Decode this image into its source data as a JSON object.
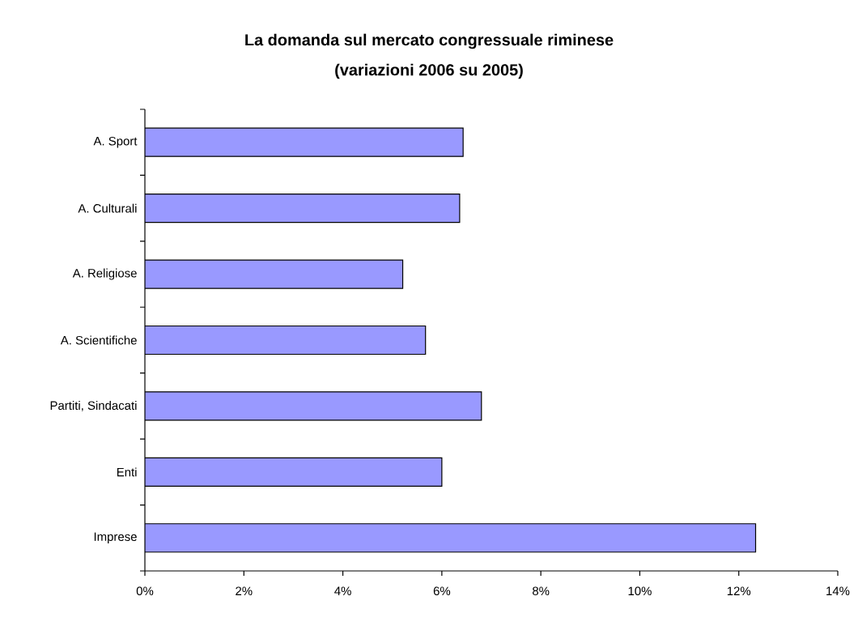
{
  "chart_data": {
    "type": "bar",
    "orientation": "horizontal",
    "title": "La domanda sul mercato congressuale riminese",
    "subtitle": "(variazioni 2006 su 2005)",
    "categories": [
      "A.  Sport",
      "A. Culturali",
      "A. Religiose",
      "A. Scientifiche",
      "Partiti, Sindacati",
      "Enti",
      "Imprese"
    ],
    "values": [
      6.43,
      6.36,
      5.21,
      5.67,
      6.8,
      6.0,
      12.34
    ],
    "color": "#9999ff",
    "xlim": [
      0,
      14
    ],
    "xticks": [
      {
        "value": 0,
        "label": "0%"
      },
      {
        "value": 2,
        "label": "2%"
      },
      {
        "value": 4,
        "label": "4%"
      },
      {
        "value": 6,
        "label": "6%"
      },
      {
        "value": 8,
        "label": "8%"
      },
      {
        "value": 10,
        "label": "10%"
      },
      {
        "value": 12,
        "label": "12%"
      },
      {
        "value": 14,
        "label": "14%"
      }
    ],
    "grid": false
  }
}
